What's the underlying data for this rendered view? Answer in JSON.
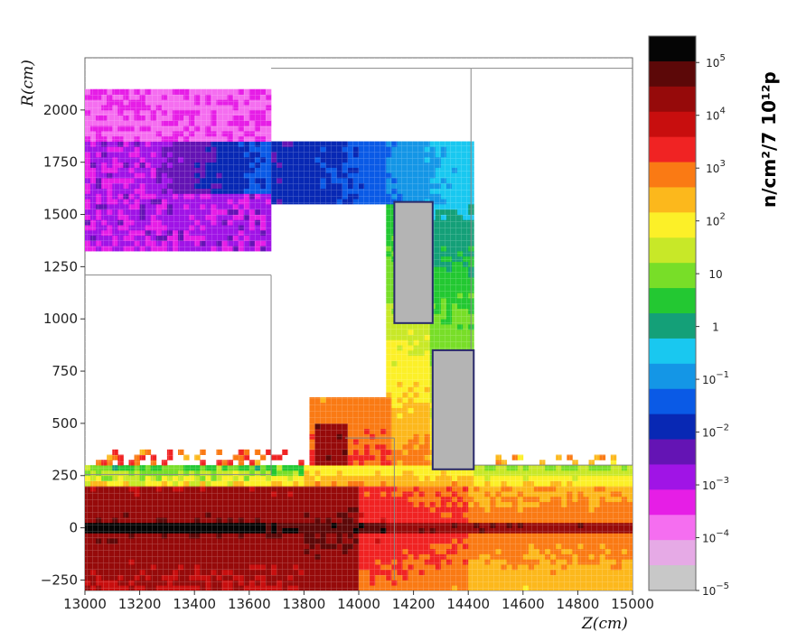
{
  "chart_data": {
    "type": "heatmap",
    "xlabel": "Z(cm)",
    "ylabel": "R(cm)",
    "xlim": [
      13000,
      15000
    ],
    "ylim": [
      -300,
      2250
    ],
    "x_ticks": [
      "13000",
      "13200",
      "13400",
      "13600",
      "13800",
      "14000",
      "14200",
      "14400",
      "14600",
      "14800",
      "15000"
    ],
    "x_tick_values": [
      13000,
      13200,
      13400,
      13600,
      13800,
      14000,
      14200,
      14400,
      14600,
      14800,
      15000
    ],
    "y_ticks": [
      "−250",
      "0",
      "250",
      "500",
      "750",
      "1000",
      "1250",
      "1500",
      "1750",
      "2000"
    ],
    "y_tick_values": [
      -250,
      0,
      250,
      500,
      750,
      1000,
      1250,
      1500,
      1750,
      2000
    ],
    "colorbar": {
      "title": "n/cm²/7 10¹²p",
      "scale": "log",
      "range_exponent": [
        -5,
        5.5
      ],
      "labels": [
        {
          "text": "10",
          "exp": "5",
          "value": 100000
        },
        {
          "text": "10",
          "exp": "4",
          "value": 10000
        },
        {
          "text": "10",
          "exp": "3",
          "value": 1000
        },
        {
          "text": "10",
          "exp": "2",
          "value": 100
        },
        {
          "text": "10",
          "exp": "",
          "value": 10
        },
        {
          "text": "1",
          "exp": "",
          "value": 1
        },
        {
          "text": "10",
          "exp": "−1",
          "value": 0.1
        },
        {
          "text": "10",
          "exp": "−2",
          "value": 0.01
        },
        {
          "text": "10",
          "exp": "−3",
          "value": 0.001
        },
        {
          "text": "10",
          "exp": "−4",
          "value": 0.0001
        },
        {
          "text": "10",
          "exp": "−5",
          "value": 1e-05
        }
      ],
      "colors_top_to_bottom": [
        "#050505",
        "#5c0808",
        "#960a0a",
        "#c80e0e",
        "#f02323",
        "#fa7a14",
        "#fcb81c",
        "#fcf028",
        "#c8e828",
        "#78de28",
        "#23c832",
        "#14a078",
        "#19c8f0",
        "#1496e6",
        "#0a5ae6",
        "#0828b4",
        "#6414b4",
        "#a014e6",
        "#e61ee6",
        "#f56ef0",
        "#e6aae6",
        "#c8c8c8"
      ]
    },
    "regions": [
      {
        "name": "upper-left",
        "z": [
          13000,
          13680
        ],
        "r": [
          1330,
          2100
        ],
        "log10_flux": -3
      },
      {
        "name": "top-corridor",
        "z": [
          13680,
          14100
        ],
        "r": [
          1560,
          1860
        ],
        "log10_flux": -2
      },
      {
        "name": "top-corridor-right",
        "z": [
          14100,
          14410
        ],
        "r": [
          1560,
          1860
        ],
        "log10_flux": -0.8
      },
      {
        "name": "vertical-shaft",
        "z": [
          14100,
          14410
        ],
        "r": [
          700,
          1560
        ],
        "log10_flux": 1.5
      },
      {
        "name": "lower-left-beam-zone",
        "z": [
          13000,
          14100
        ],
        "r": [
          -300,
          200
        ],
        "log10_flux": 4.5
      },
      {
        "name": "lower-right-zone",
        "z": [
          14100,
          15000
        ],
        "r": [
          -300,
          200
        ],
        "log10_flux": 3
      }
    ],
    "boxes": [
      {
        "z": [
          14130,
          14270
        ],
        "r": [
          980,
          1560
        ]
      },
      {
        "z": [
          14270,
          14420
        ],
        "r": [
          280,
          850
        ]
      }
    ]
  }
}
